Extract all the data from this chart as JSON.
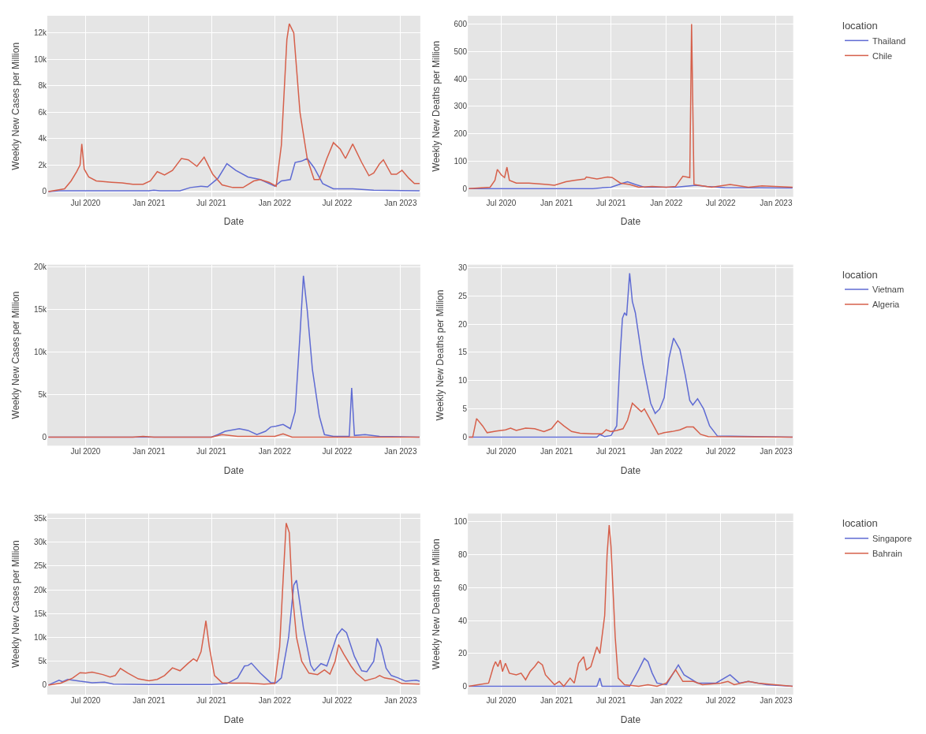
{
  "chart_data": [
    {
      "type": "line",
      "xlabel": "Date",
      "ylabel": "Weekly New Cases per Million",
      "xlim": [
        "2020-03-12",
        "2023-02-27"
      ],
      "ylim": [
        -400,
        13300
      ],
      "grid": true,
      "legend": false,
      "xticks": [
        {
          "value": "2020-07-01",
          "label": "Jul 2020"
        },
        {
          "value": "2021-01-01",
          "label": "Jan 2021"
        },
        {
          "value": "2021-07-01",
          "label": "Jul 2021"
        },
        {
          "value": "2022-01-01",
          "label": "Jan 2022"
        },
        {
          "value": "2022-07-01",
          "label": "Jul 2022"
        },
        {
          "value": "2023-01-01",
          "label": "Jan 2023"
        }
      ],
      "yticks": [
        0,
        {
          "value": 2000,
          "label": "2k"
        },
        {
          "value": 4000,
          "label": "4k"
        },
        {
          "value": 6000,
          "label": "6k"
        },
        {
          "value": 8000,
          "label": "8k"
        },
        {
          "value": 10000,
          "label": "10k"
        },
        {
          "value": 12000,
          "label": "12k"
        }
      ],
      "series": [
        {
          "color": "#5f6bd3",
          "x": [
            "2020-03-15",
            "2020-04-15",
            "2021-01-01",
            "2021-01-15",
            "2021-02-01",
            "2021-04-01",
            "2021-05-01",
            "2021-06-01",
            "2021-06-20",
            "2021-07-20",
            "2021-08-15",
            "2021-09-10",
            "2021-10-15",
            "2021-11-20",
            "2022-01-01",
            "2022-01-20",
            "2022-02-15",
            "2022-03-01",
            "2022-03-20",
            "2022-04-05",
            "2022-04-25",
            "2022-05-20",
            "2022-06-20",
            "2022-08-15",
            "2022-10-15",
            "2023-02-25"
          ],
          "values": [
            0,
            50,
            50,
            100,
            50,
            50,
            300,
            400,
            350,
            1000,
            2100,
            1600,
            1100,
            900,
            400,
            800,
            900,
            2200,
            2300,
            2500,
            1800,
            600,
            200,
            200,
            100,
            50
          ]
        },
        {
          "color": "#d6604b",
          "x": [
            "2020-03-15",
            "2020-05-01",
            "2020-05-20",
            "2020-06-05",
            "2020-06-15",
            "2020-06-20",
            "2020-06-27",
            "2020-07-10",
            "2020-08-01",
            "2020-09-15",
            "2020-10-15",
            "2020-11-15",
            "2020-12-15",
            "2021-01-05",
            "2021-01-25",
            "2021-02-15",
            "2021-03-10",
            "2021-04-05",
            "2021-04-25",
            "2021-05-20",
            "2021-06-10",
            "2021-07-05",
            "2021-08-01",
            "2021-09-01",
            "2021-10-01",
            "2021-11-01",
            "2021-11-20",
            "2021-12-15",
            "2022-01-05",
            "2022-01-20",
            "2022-02-05",
            "2022-02-12",
            "2022-02-25",
            "2022-03-15",
            "2022-04-05",
            "2022-04-25",
            "2022-05-10",
            "2022-06-01",
            "2022-06-20",
            "2022-07-10",
            "2022-07-25",
            "2022-08-15",
            "2022-09-10",
            "2022-10-01",
            "2022-10-15",
            "2022-11-01",
            "2022-11-12",
            "2022-12-05",
            "2022-12-20",
            "2023-01-05",
            "2023-01-25",
            "2023-02-10",
            "2023-02-25"
          ],
          "values": [
            0,
            200,
            800,
            1500,
            2000,
            3600,
            1700,
            1100,
            800,
            700,
            650,
            550,
            550,
            800,
            1500,
            1250,
            1600,
            2500,
            2400,
            1900,
            2600,
            1300,
            500,
            300,
            300,
            800,
            900,
            700,
            400,
            3500,
            11500,
            12700,
            12000,
            6000,
            2500,
            900,
            900,
            2500,
            3700,
            3200,
            2500,
            3600,
            2200,
            1200,
            1400,
            2100,
            2400,
            1300,
            1300,
            1600,
            1000,
            600,
            600
          ]
        }
      ]
    },
    {
      "type": "line",
      "xlabel": "Date",
      "ylabel": "Weekly New Deaths per Million",
      "legend_title": "location",
      "xlim": [
        "2020-03-12",
        "2023-02-27"
      ],
      "ylim": [
        -30,
        630
      ],
      "grid": true,
      "legend": "right",
      "xticks": [
        {
          "value": "2020-07-01",
          "label": "Jul 2020"
        },
        {
          "value": "2021-01-01",
          "label": "Jan 2021"
        },
        {
          "value": "2021-07-01",
          "label": "Jul 2021"
        },
        {
          "value": "2022-01-01",
          "label": "Jan 2022"
        },
        {
          "value": "2022-07-01",
          "label": "Jul 2022"
        },
        {
          "value": "2023-01-01",
          "label": "Jan 2023"
        }
      ],
      "yticks": [
        0,
        100,
        200,
        300,
        400,
        500,
        600
      ],
      "series": [
        {
          "name": "Thailand",
          "color": "#5f6bd3",
          "x": [
            "2020-03-15",
            "2021-05-01",
            "2021-07-01",
            "2021-08-10",
            "2021-08-25",
            "2021-09-20",
            "2021-10-20",
            "2022-02-01",
            "2022-04-10",
            "2022-05-15",
            "2022-07-15",
            "2023-02-25"
          ],
          "values": [
            0,
            0,
            5,
            20,
            25,
            15,
            5,
            5,
            12,
            8,
            3,
            2
          ]
        },
        {
          "name": "Chile",
          "color": "#d6604b",
          "x": [
            "2020-03-15",
            "2020-05-25",
            "2020-06-10",
            "2020-06-18",
            "2020-07-01",
            "2020-07-12",
            "2020-07-20",
            "2020-07-28",
            "2020-08-20",
            "2020-10-01",
            "2020-12-01",
            "2020-12-25",
            "2021-02-01",
            "2021-03-01",
            "2021-04-05",
            "2021-04-10",
            "2021-05-15",
            "2021-06-20",
            "2021-07-05",
            "2021-08-01",
            "2021-09-01",
            "2021-10-01",
            "2021-11-15",
            "2022-01-01",
            "2022-02-01",
            "2022-02-25",
            "2022-03-20",
            "2022-03-26",
            "2022-04-03",
            "2022-05-01",
            "2022-06-01",
            "2022-07-01",
            "2022-08-01",
            "2022-10-01",
            "2022-11-15",
            "2023-02-25"
          ],
          "values": [
            0,
            5,
            30,
            70,
            50,
            40,
            78,
            30,
            20,
            20,
            15,
            12,
            25,
            30,
            35,
            42,
            35,
            42,
            40,
            20,
            15,
            5,
            8,
            5,
            8,
            45,
            40,
            600,
            15,
            10,
            5,
            10,
            15,
            5,
            10,
            5
          ]
        }
      ]
    },
    {
      "type": "line",
      "xlabel": "Date",
      "ylabel": "Weekly New Cases per Million",
      "xlim": [
        "2020-03-12",
        "2023-02-27"
      ],
      "ylim": [
        -1000,
        20300
      ],
      "grid": true,
      "legend": false,
      "xticks": [
        {
          "value": "2020-07-01",
          "label": "Jul 2020"
        },
        {
          "value": "2021-01-01",
          "label": "Jan 2021"
        },
        {
          "value": "2021-07-01",
          "label": "Jul 2021"
        },
        {
          "value": "2022-01-01",
          "label": "Jan 2022"
        },
        {
          "value": "2022-07-01",
          "label": "Jul 2022"
        },
        {
          "value": "2023-01-01",
          "label": "Jan 2023"
        }
      ],
      "yticks": [
        0,
        {
          "value": 5000,
          "label": "5k"
        },
        {
          "value": 10000,
          "label": "10k"
        },
        {
          "value": 15000,
          "label": "15k"
        },
        {
          "value": 20000,
          "label": "20k"
        }
      ],
      "series": [
        {
          "color": "#5f6bd3",
          "x": [
            "2020-03-15",
            "2021-07-01",
            "2021-07-20",
            "2021-08-10",
            "2021-09-20",
            "2021-10-15",
            "2021-11-10",
            "2021-12-05",
            "2021-12-20",
            "2022-01-05",
            "2022-01-25",
            "2022-02-15",
            "2022-03-01",
            "2022-03-15",
            "2022-03-25",
            "2022-04-05",
            "2022-04-20",
            "2022-05-10",
            "2022-05-25",
            "2022-06-20",
            "2022-08-05",
            "2022-08-12",
            "2022-08-20",
            "2022-09-20",
            "2022-11-01",
            "2023-02-25"
          ],
          "values": [
            0,
            0,
            300,
            700,
            1000,
            800,
            300,
            700,
            1200,
            1300,
            1500,
            1000,
            3000,
            12000,
            19000,
            15000,
            8000,
            2500,
            300,
            100,
            100,
            5800,
            200,
            300,
            100,
            0
          ]
        },
        {
          "color": "#d6604b",
          "x": [
            "2020-03-15",
            "2020-11-15",
            "2020-12-15",
            "2021-01-15",
            "2021-07-01",
            "2021-08-01",
            "2021-09-15",
            "2022-01-01",
            "2022-01-25",
            "2022-02-20",
            "2023-02-25"
          ],
          "values": [
            0,
            0,
            100,
            0,
            0,
            300,
            100,
            100,
            400,
            0,
            0
          ]
        }
      ]
    },
    {
      "type": "line",
      "xlabel": "Date",
      "ylabel": "Weekly New Deaths per Million",
      "legend_title": "location",
      "xlim": [
        "2020-03-12",
        "2023-02-27"
      ],
      "ylim": [
        -1.5,
        30.5
      ],
      "grid": true,
      "legend": "right",
      "xticks": [
        {
          "value": "2020-07-01",
          "label": "Jul 2020"
        },
        {
          "value": "2021-01-01",
          "label": "Jan 2021"
        },
        {
          "value": "2021-07-01",
          "label": "Jul 2021"
        },
        {
          "value": "2022-01-01",
          "label": "Jan 2022"
        },
        {
          "value": "2022-07-01",
          "label": "Jul 2022"
        },
        {
          "value": "2023-01-01",
          "label": "Jan 2023"
        }
      ],
      "yticks": [
        0,
        5,
        10,
        15,
        20,
        25,
        30
      ],
      "series": [
        {
          "name": "Vietnam",
          "color": "#5f6bd3",
          "x": [
            "2020-03-15",
            "2021-05-15",
            "2021-05-25",
            "2021-06-10",
            "2021-07-01",
            "2021-07-20",
            "2021-08-01",
            "2021-08-08",
            "2021-08-15",
            "2021-08-22",
            "2021-09-01",
            "2021-09-10",
            "2021-09-20",
            "2021-10-15",
            "2021-11-10",
            "2021-11-25",
            "2021-12-10",
            "2021-12-25",
            "2022-01-10",
            "2022-01-25",
            "2022-02-15",
            "2022-03-05",
            "2022-03-20",
            "2022-03-30",
            "2022-04-15",
            "2022-05-05",
            "2022-05-25",
            "2022-06-20",
            "2023-02-25"
          ],
          "values": [
            0,
            0,
            0.5,
            0.1,
            0.3,
            2,
            15,
            21,
            22,
            21.5,
            29,
            24,
            22,
            13,
            6,
            4.2,
            5,
            7,
            14,
            17.5,
            15.5,
            11,
            6.5,
            5.7,
            6.8,
            5,
            2,
            0.2,
            0
          ]
        },
        {
          "name": "Algeria",
          "color": "#d6604b",
          "x": [
            "2020-03-15",
            "2020-03-28",
            "2020-04-10",
            "2020-04-30",
            "2020-05-15",
            "2020-06-15",
            "2020-07-15",
            "2020-08-01",
            "2020-08-20",
            "2020-09-20",
            "2020-10-20",
            "2020-11-20",
            "2020-12-15",
            "2021-01-05",
            "2021-01-25",
            "2021-02-20",
            "2021-03-20",
            "2021-05-01",
            "2021-06-01",
            "2021-06-15",
            "2021-07-01",
            "2021-07-20",
            "2021-08-10",
            "2021-08-25",
            "2021-09-10",
            "2021-09-30",
            "2021-10-10",
            "2021-10-20",
            "2021-11-15",
            "2021-12-05",
            "2021-12-25",
            "2022-01-20",
            "2022-02-15",
            "2022-03-10",
            "2022-04-01",
            "2022-04-25",
            "2022-05-20",
            "2023-02-25"
          ],
          "values": [
            0,
            0,
            3.3,
            2,
            0.8,
            1.1,
            1.3,
            1.6,
            1.2,
            1.6,
            1.5,
            1.0,
            1.5,
            2.9,
            2.0,
            1.0,
            0.7,
            0.6,
            0.6,
            1.3,
            1.0,
            1.2,
            1.5,
            3.0,
            6.0,
            5.0,
            4.5,
            5.0,
            2.5,
            0.5,
            0.8,
            1.0,
            1.3,
            1.8,
            1.8,
            0.5,
            0.1,
            0
          ]
        }
      ]
    },
    {
      "type": "line",
      "xlabel": "Date",
      "ylabel": "Weekly New Cases per Million",
      "xlim": [
        "2020-03-12",
        "2023-02-27"
      ],
      "ylim": [
        -2000,
        36000
      ],
      "grid": true,
      "legend": false,
      "xticks": [
        {
          "value": "2020-07-01",
          "label": "Jul 2020"
        },
        {
          "value": "2021-01-01",
          "label": "Jan 2021"
        },
        {
          "value": "2021-07-01",
          "label": "Jul 2021"
        },
        {
          "value": "2022-01-01",
          "label": "Jan 2022"
        },
        {
          "value": "2022-07-01",
          "label": "Jul 2022"
        },
        {
          "value": "2023-01-01",
          "label": "Jan 2023"
        }
      ],
      "yticks": [
        0,
        {
          "value": 5000,
          "label": "5k"
        },
        {
          "value": 10000,
          "label": "10k"
        },
        {
          "value": 15000,
          "label": "15k"
        },
        {
          "value": 20000,
          "label": "20k"
        },
        {
          "value": 25000,
          "label": "25k"
        },
        {
          "value": 30000,
          "label": "30k"
        },
        {
          "value": 35000,
          "label": "35k"
        }
      ],
      "series": [
        {
          "color": "#5f6bd3",
          "x": [
            "2020-03-15",
            "2020-04-15",
            "2020-04-25",
            "2020-05-10",
            "2020-06-15",
            "2020-07-20",
            "2020-08-25",
            "2020-09-20",
            "2021-01-01",
            "2021-07-01",
            "2021-08-15",
            "2021-09-15",
            "2021-10-05",
            "2021-10-15",
            "2021-10-25",
            "2021-11-20",
            "2021-12-20",
            "2022-01-05",
            "2022-01-20",
            "2022-02-10",
            "2022-02-25",
            "2022-03-05",
            "2022-03-25",
            "2022-04-15",
            "2022-04-25",
            "2022-05-15",
            "2022-06-01",
            "2022-06-15",
            "2022-07-01",
            "2022-07-15",
            "2022-07-28",
            "2022-08-20",
            "2022-09-10",
            "2022-09-25",
            "2022-10-15",
            "2022-10-25",
            "2022-11-05",
            "2022-11-20",
            "2022-12-05",
            "2022-12-25",
            "2023-01-15",
            "2023-02-15",
            "2023-02-25"
          ],
          "values": [
            0,
            1000,
            700,
            1200,
            800,
            500,
            600,
            200,
            100,
            100,
            300,
            1500,
            4000,
            4100,
            4600,
            2500,
            500,
            500,
            1500,
            10000,
            21000,
            22000,
            12000,
            4200,
            3000,
            4500,
            4000,
            7000,
            10500,
            11800,
            11000,
            6000,
            3000,
            2800,
            5000,
            9800,
            8000,
            3500,
            2000,
            1500,
            800,
            1000,
            800
          ]
        },
        {
          "color": "#d6604b",
          "x": [
            "2020-03-15",
            "2020-04-20",
            "2020-05-10",
            "2020-05-25",
            "2020-06-15",
            "2020-07-01",
            "2020-07-20",
            "2020-08-20",
            "2020-09-10",
            "2020-09-25",
            "2020-10-10",
            "2020-11-01",
            "2020-12-01",
            "2021-01-01",
            "2021-01-25",
            "2021-02-15",
            "2021-03-10",
            "2021-04-01",
            "2021-04-25",
            "2021-05-10",
            "2021-05-20",
            "2021-06-01",
            "2021-06-10",
            "2021-06-15",
            "2021-06-25",
            "2021-07-10",
            "2021-08-01",
            "2021-09-01",
            "2021-10-15",
            "2021-12-01",
            "2022-01-01",
            "2022-01-15",
            "2022-01-25",
            "2022-02-03",
            "2022-02-12",
            "2022-02-20",
            "2022-03-05",
            "2022-03-20",
            "2022-04-10",
            "2022-05-05",
            "2022-05-25",
            "2022-06-10",
            "2022-06-25",
            "2022-07-05",
            "2022-07-20",
            "2022-08-10",
            "2022-08-25",
            "2022-09-20",
            "2022-10-20",
            "2022-11-01",
            "2022-11-15",
            "2022-12-10",
            "2023-01-05",
            "2023-02-25"
          ],
          "values": [
            0,
            400,
            1000,
            1500,
            2600,
            2500,
            2700,
            2200,
            1700,
            2000,
            3500,
            2500,
            1300,
            900,
            1200,
            2000,
            3600,
            3000,
            4600,
            5500,
            5000,
            7000,
            11000,
            13500,
            8000,
            2000,
            500,
            400,
            400,
            200,
            300,
            8000,
            22000,
            34000,
            32000,
            20000,
            10000,
            5000,
            2500,
            2200,
            3200,
            2300,
            5000,
            8500,
            6500,
            4000,
            2500,
            900,
            1500,
            2000,
            1500,
            1200,
            300,
            200
          ]
        }
      ]
    },
    {
      "type": "line",
      "xlabel": "Date",
      "ylabel": "Weekly New Deaths per Million",
      "legend_title": "location",
      "xlim": [
        "2020-03-12",
        "2023-02-27"
      ],
      "ylim": [
        -5,
        105
      ],
      "grid": true,
      "legend": "right",
      "xticks": [
        {
          "value": "2020-07-01",
          "label": "Jul 2020"
        },
        {
          "value": "2021-01-01",
          "label": "Jan 2021"
        },
        {
          "value": "2021-07-01",
          "label": "Jul 2021"
        },
        {
          "value": "2022-01-01",
          "label": "Jan 2022"
        },
        {
          "value": "2022-07-01",
          "label": "Jul 2022"
        },
        {
          "value": "2023-01-01",
          "label": "Jan 2023"
        }
      ],
      "yticks": [
        0,
        20,
        40,
        60,
        80,
        100
      ],
      "series": [
        {
          "name": "Singapore",
          "color": "#5f6bd3",
          "x": [
            "2020-03-15",
            "2021-05-15",
            "2021-05-25",
            "2021-06-01",
            "2021-09-01",
            "2021-10-01",
            "2021-10-20",
            "2021-11-01",
            "2021-11-15",
            "2021-12-01",
            "2022-01-01",
            "2022-02-10",
            "2022-03-01",
            "2022-04-15",
            "2022-06-15",
            "2022-08-01",
            "2022-09-01",
            "2022-10-01",
            "2022-12-01",
            "2023-02-25"
          ],
          "values": [
            0,
            0,
            5,
            0,
            0,
            10,
            17,
            15,
            8,
            2,
            1,
            13,
            7,
            2,
            2,
            7,
            2,
            3,
            1,
            0
          ]
        },
        {
          "name": "Bahrain",
          "color": "#d6604b",
          "x": [
            "2020-03-15",
            "2020-04-15",
            "2020-05-20",
            "2020-06-05",
            "2020-06-12",
            "2020-06-20",
            "2020-06-28",
            "2020-07-05",
            "2020-07-15",
            "2020-07-28",
            "2020-08-20",
            "2020-09-05",
            "2020-09-20",
            "2020-10-05",
            "2020-10-20",
            "2020-11-01",
            "2020-11-15",
            "2020-11-25",
            "2020-12-10",
            "2020-12-25",
            "2021-01-10",
            "2021-01-25",
            "2021-02-15",
            "2021-03-01",
            "2021-03-15",
            "2021-04-01",
            "2021-04-10",
            "2021-04-25",
            "2021-05-05",
            "2021-05-15",
            "2021-05-25",
            "2021-06-01",
            "2021-06-10",
            "2021-06-18",
            "2021-06-25",
            "2021-07-01",
            "2021-07-15",
            "2021-07-25",
            "2021-08-15",
            "2021-10-01",
            "2021-11-01",
            "2021-12-01",
            "2022-01-01",
            "2022-02-01",
            "2022-02-25",
            "2022-04-01",
            "2022-05-01",
            "2022-07-01",
            "2022-07-25",
            "2022-08-15",
            "2022-10-01",
            "2022-11-01",
            "2023-02-25"
          ],
          "values": [
            0,
            1,
            2,
            12,
            15,
            12,
            16,
            9,
            14,
            8,
            7,
            8,
            4,
            9,
            12,
            15,
            13,
            7,
            4,
            1,
            3,
            0,
            5,
            2,
            14,
            18,
            10,
            12,
            18,
            24,
            20,
            30,
            43,
            80,
            98,
            85,
            30,
            5,
            1,
            0,
            1,
            0,
            2,
            10,
            3,
            3,
            1,
            2,
            3,
            1,
            3,
            2,
            0
          ]
        }
      ]
    }
  ]
}
